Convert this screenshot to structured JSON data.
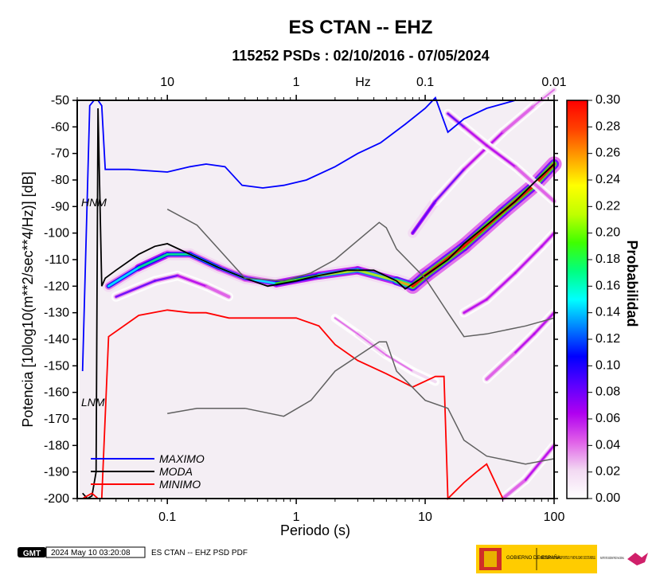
{
  "title": "ES CTAN -- EHZ",
  "subtitle": "115252 PSDs : 02/10/2016 - 07/05/2024",
  "footer": {
    "logo_text": "GMT",
    "timestamp": "2024 May 10 03:20:08",
    "caption": "ES CTAN -- EHZ PSD PDF",
    "gov_block": "GOBIERNO DE ESPAÑA",
    "ministry": "MINISTERIO DE TRANSPORTES Y MOVILIDAD SOSTENIBLE",
    "institute": "INSTITUTO GEOGRÁFICO NACIONAL"
  },
  "chart_data": {
    "type": "heatmap",
    "title": "ES CTAN -- EHZ",
    "subtitle": "115252 PSDs : 02/10/2016 - 07/05/2024",
    "xlabel": "Periodo (s)",
    "x2label": "Hz",
    "ylabel": "Potencia [10log10(m**2/sec**4/Hz)] [dB]",
    "x_scale": "log",
    "xlim": [
      0.02,
      100
    ],
    "ylim": [
      -200,
      -50
    ],
    "x_ticks": [
      0.1,
      1,
      10,
      100
    ],
    "x_tick_labels": [
      "0.1",
      "1",
      "10",
      "100"
    ],
    "x2_ticks": [
      10,
      1,
      0.1,
      0.01
    ],
    "x2_tick_labels": [
      "10",
      "1",
      "0.1",
      "0.01"
    ],
    "y_ticks": [
      -50,
      -60,
      -70,
      -80,
      -90,
      -100,
      -110,
      -120,
      -130,
      -140,
      -150,
      -160,
      -170,
      -180,
      -190,
      -200
    ],
    "colorbar": {
      "label": "Probabilidad",
      "range": [
        0.0,
        0.3
      ],
      "ticks": [
        "0.30",
        "0.28",
        "0.26",
        "0.24",
        "0.22",
        "0.20",
        "0.18",
        "0.16",
        "0.14",
        "0.12",
        "0.10",
        "0.08",
        "0.06",
        "0.04",
        "0.02",
        "0.00"
      ],
      "colors": [
        "#ffffff",
        "#f2d9f2",
        "#e060e8",
        "#b000f0",
        "#5a00ff",
        "#0000ff",
        "#0080ff",
        "#00ffff",
        "#00ff80",
        "#40ff00",
        "#c0ff00",
        "#ffff00",
        "#ffa000",
        "#ff4000",
        "#ff0000"
      ]
    },
    "annotations": [
      "HNM",
      "LNM"
    ],
    "legend": {
      "placement": "bottom-left",
      "entries": [
        {
          "name": "MAXIMO",
          "color": "#0000ff"
        },
        {
          "name": "MODA",
          "color": "#000000"
        },
        {
          "name": "MINIMO",
          "color": "#ff0000"
        }
      ]
    },
    "series": [
      {
        "name": "MAXIMO",
        "color": "#0000ff",
        "x": [
          0.022,
          0.025,
          0.027,
          0.029,
          0.031,
          0.033,
          0.05,
          0.1,
          0.15,
          0.2,
          0.28,
          0.38,
          0.55,
          0.8,
          1.2,
          2,
          3,
          4.5,
          7,
          10,
          12,
          15,
          20,
          30,
          50,
          100
        ],
        "y": [
          -152,
          -52,
          -50,
          -50,
          -52,
          -76,
          -76,
          -77,
          -75,
          -74,
          -75,
          -82,
          -83,
          -82,
          -80,
          -75,
          -70,
          -66,
          -59,
          -53,
          -49,
          -62,
          -57,
          -53,
          -50,
          -50
        ]
      },
      {
        "name": "MODA",
        "color": "#000000",
        "x": [
          0.022,
          0.024,
          0.026,
          0.028,
          0.029,
          0.031,
          0.033,
          0.04,
          0.06,
          0.08,
          0.1,
          0.15,
          0.25,
          0.4,
          0.6,
          1,
          1.5,
          2.5,
          4,
          6,
          7,
          10,
          15,
          20,
          30,
          50,
          70,
          100
        ],
        "y": [
          -198,
          -200,
          -199,
          -190,
          -53,
          -120,
          -117,
          -114,
          -108,
          -105,
          -104,
          -108,
          -113,
          -117,
          -120,
          -118,
          -116,
          -114,
          -114,
          -118,
          -121,
          -116,
          -110,
          -104,
          -97,
          -88,
          -81,
          -74
        ]
      },
      {
        "name": "MINIMO",
        "color": "#ff0000",
        "x": [
          0.022,
          0.026,
          0.029,
          0.031,
          0.035,
          0.06,
          0.1,
          0.15,
          0.2,
          0.3,
          0.4,
          0.6,
          1,
          1.5,
          2,
          3,
          5,
          8,
          12,
          14,
          15,
          20,
          25,
          30,
          40,
          60,
          100
        ],
        "y": [
          -200,
          -198,
          -200,
          -200,
          -139,
          -131,
          -129,
          -130,
          -130,
          -132,
          -132,
          -132,
          -132,
          -135,
          -142,
          -148,
          -153,
          -158,
          -154,
          -154,
          -200,
          -194,
          -190,
          -187,
          -200,
          -200,
          -200
        ]
      },
      {
        "name": "HNM",
        "color": "#606060",
        "x": [
          0.1,
          0.17,
          0.4,
          0.8,
          1.3,
          2,
          4.4,
          5,
          6,
          10,
          15,
          20,
          30,
          60,
          100
        ],
        "y": [
          -91,
          -97,
          -117,
          -118,
          -115,
          -110,
          -96,
          -98,
          -106,
          -117,
          -130,
          -139,
          -138,
          -135,
          -132
        ]
      },
      {
        "name": "LNM",
        "color": "#606060",
        "x": [
          0.1,
          0.17,
          0.4,
          0.8,
          1.3,
          2,
          4.4,
          5,
          6,
          10,
          15,
          20,
          30,
          60,
          100
        ],
        "y": [
          -168,
          -166,
          -166,
          -169,
          -163,
          -152,
          -141,
          -141,
          -152,
          -163,
          -166,
          -178,
          -184,
          -187,
          -185
        ]
      }
    ],
    "density_ridges": [
      {
        "x": [
          0.035,
          0.06,
          0.1,
          0.15,
          0.25,
          0.4,
          0.7,
          1.5,
          3,
          6,
          8,
          10,
          20,
          40,
          70,
          100
        ],
        "y": [
          -120,
          -113,
          -108,
          -108,
          -113,
          -117,
          -119,
          -116,
          -114,
          -118,
          -120,
          -116,
          -105,
          -92,
          -82,
          -74
        ],
        "weight": [
          0.45,
          0.6,
          0.55,
          0.55,
          0.5,
          0.45,
          0.55,
          0.7,
          0.7,
          0.75,
          1.0,
          1.0,
          1.0,
          1.0,
          1.0,
          1.0
        ]
      },
      {
        "x": [
          0.04,
          0.08,
          0.12,
          0.2,
          0.3
        ],
        "y": [
          -124,
          -118,
          -116,
          -120,
          -124
        ],
        "weight": [
          0.25,
          0.3,
          0.25,
          0.2,
          0.15
        ]
      },
      {
        "x": [
          8,
          12,
          20,
          40,
          70,
          100
        ],
        "y": [
          -100,
          -88,
          -76,
          -62,
          -52,
          -46
        ],
        "weight": [
          0.3,
          0.3,
          0.25,
          0.2,
          0.15,
          0.1
        ]
      },
      {
        "x": [
          15,
          20,
          30,
          50,
          100
        ],
        "y": [
          -55,
          -60,
          -67,
          -75,
          -88
        ],
        "weight": [
          0.25,
          0.25,
          0.2,
          0.2,
          0.15
        ]
      },
      {
        "x": [
          20,
          30,
          50,
          80,
          100
        ],
        "y": [
          -130,
          -125,
          -115,
          -105,
          -100
        ],
        "weight": [
          0.2,
          0.25,
          0.2,
          0.2,
          0.2
        ]
      },
      {
        "x": [
          30,
          50,
          70,
          100
        ],
        "y": [
          -155,
          -145,
          -138,
          -130
        ],
        "weight": [
          0.15,
          0.2,
          0.2,
          0.2
        ]
      },
      {
        "x": [
          40,
          60,
          100
        ],
        "y": [
          -200,
          -193,
          -180
        ],
        "weight": [
          0.15,
          0.2,
          0.2
        ]
      },
      {
        "x": [
          2,
          3,
          5,
          8,
          12
        ],
        "y": [
          -132,
          -138,
          -146,
          -152,
          -156
        ],
        "weight": [
          0.1,
          0.12,
          0.12,
          0.1,
          0.1
        ]
      }
    ]
  }
}
